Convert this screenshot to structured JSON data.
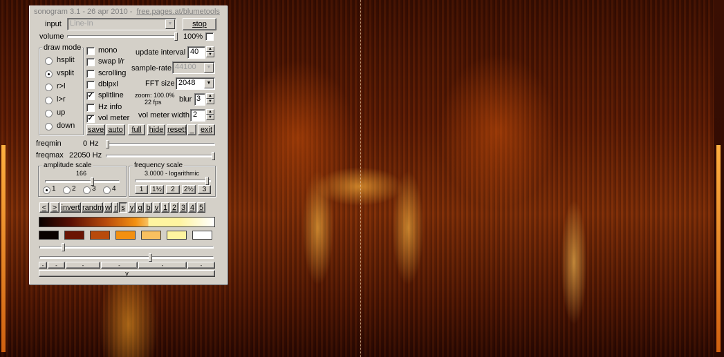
{
  "title": {
    "app": "sonogram 3.1 - 26 apr 2010 -",
    "link": "free.pages.at/blumetools"
  },
  "input": {
    "label": "input",
    "value": "Line-In",
    "stop_label": "stop"
  },
  "volume": {
    "label": "volume",
    "percent": "100%",
    "level": 1.0
  },
  "draw_mode": {
    "title": "draw mode",
    "options": [
      "hsplit",
      "vsplit",
      "r>l",
      "l>r",
      "up",
      "down"
    ],
    "selected": "vsplit"
  },
  "checks": {
    "mono": "mono",
    "swap": "swap l/r",
    "scrolling": "scrolling",
    "dblpxl": "dblpxl",
    "splitline": "splitline",
    "hzinfo": "Hz info",
    "volmeter": "vol meter"
  },
  "checked": {
    "splitline": true,
    "volmeter": true
  },
  "settings": {
    "update_interval_label": "update interval",
    "update_interval": "40",
    "sample_rate_label": "sample-rate",
    "sample_rate": "44100",
    "fft_label": "FFT size",
    "fft": "2048",
    "zoom_text": "zoom: 100.0%",
    "fps_text": "22 fps",
    "blur_label": "blur",
    "blur": "3",
    "vol_meter_width_label": "vol meter width",
    "vol_meter_width": "2"
  },
  "actions": {
    "save": "save",
    "auto": "auto",
    "full": "full",
    "hide": "hide",
    "reset": "reset!",
    "min": "_",
    "exit": "exit"
  },
  "freq": {
    "min_label": "freqmin",
    "min_value": "0 Hz",
    "max_label": "freqmax",
    "max_value": "22050 Hz"
  },
  "amplitude": {
    "title": "amplitude scale",
    "value": "166",
    "radios": [
      "1",
      "2",
      "3",
      "4"
    ],
    "selected": "1"
  },
  "frequency_scale": {
    "title": "frequency scale",
    "value": "3.0000 - logarithmic",
    "buttons": [
      "1",
      "1½",
      "2",
      "2½",
      "3"
    ]
  },
  "palette": {
    "buttons": [
      "<",
      ">",
      "invert",
      "randm",
      "w",
      "r",
      "s",
      "y",
      "g",
      "b",
      "v",
      "1",
      "2",
      "3",
      "4",
      "5"
    ],
    "swatches": [
      "#0a0200",
      "#6a1404",
      "#b84a0c",
      "#f39010",
      "#f8c060",
      "#fff4a0",
      "#ffffff"
    ]
  },
  "bottom_bar": {
    "v_label": "v"
  }
}
